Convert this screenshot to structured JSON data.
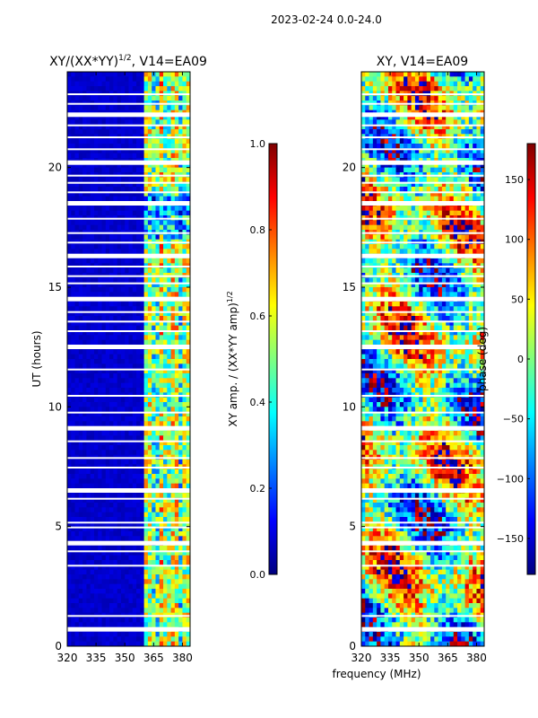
{
  "figure_title": "2023-02-24 0.0-24.0",
  "xlabel_shared": "frequency (MHz)",
  "colors": {
    "background": "#ffffff",
    "axis": "#000000",
    "plot_fill": "#00007f"
  },
  "chart_data": [
    {
      "type": "heatmap",
      "title": "XY/(XX*YY)",
      "title_sup": "1/2",
      "title_suffix": ", V14=EA09",
      "xlabel": "",
      "ylabel": "UT (hours)",
      "xlim": [
        320,
        384
      ],
      "ylim": [
        0,
        24
      ],
      "xticks": [
        320,
        335,
        350,
        365,
        380
      ],
      "yticks": [
        0,
        5,
        10,
        15,
        20
      ],
      "colormap": "jet",
      "colorbar": {
        "label": "XY amp. / (XX*YY amp)",
        "label_sup": "1/2",
        "range": [
          0.0,
          1.0
        ],
        "ticks": [
          "0.0",
          "0.2",
          "0.4",
          "0.6",
          "0.8",
          "1.0"
        ]
      },
      "description_values": {
        "low_band_value": 0.05,
        "high_band_start_mhz": 361,
        "high_band_values": [
          0.55,
          0.45,
          0.65,
          0.5,
          0.6,
          0.4,
          0.55
        ]
      }
    },
    {
      "type": "heatmap",
      "title": "XY, V14=EA09",
      "xlabel": "frequency (MHz)",
      "ylabel": "",
      "xlim": [
        320,
        384
      ],
      "ylim": [
        0,
        24
      ],
      "xticks": [
        320,
        335,
        350,
        365,
        380
      ],
      "yticks": [
        0,
        5,
        10,
        15,
        20
      ],
      "colormap": "jet",
      "colorbar": {
        "label": "phase (deg)",
        "range": [
          -180,
          180
        ],
        "ticks": [
          "150",
          "100",
          "50",
          "0",
          "−50",
          "−100",
          "−150"
        ]
      }
    }
  ]
}
